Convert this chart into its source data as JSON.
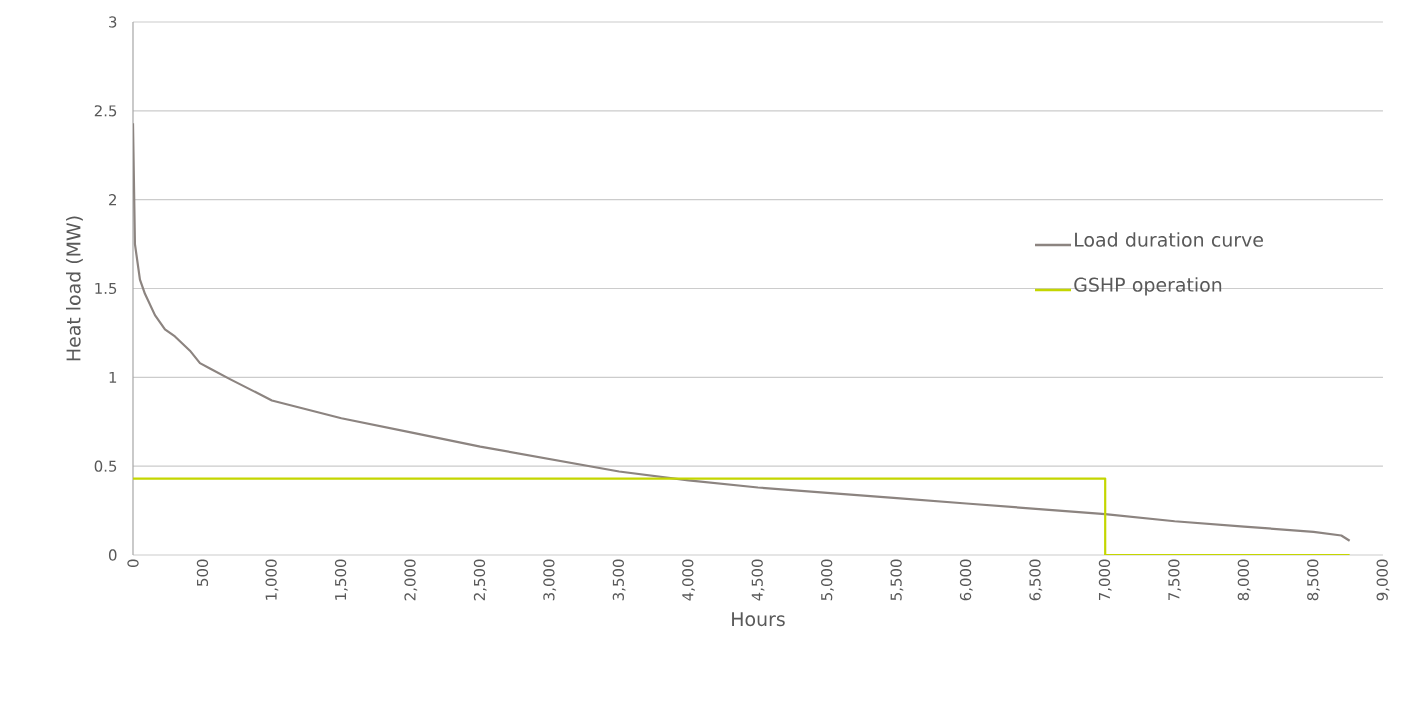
{
  "chart_data": {
    "type": "line",
    "xlabel": "Hours",
    "ylabel": "Heat load (MW)",
    "xlim": [
      0,
      9000
    ],
    "ylim": [
      0,
      3
    ],
    "xticks": [
      0,
      {
        "value": 500,
        "label": "500"
      },
      {
        "value": 1000,
        "label": "1,000"
      },
      {
        "value": 1500,
        "label": "1,500"
      },
      {
        "value": 2000,
        "label": "2,000"
      },
      {
        "value": 2500,
        "label": "2,500"
      },
      {
        "value": 3000,
        "label": "3,000"
      },
      {
        "value": 3500,
        "label": "3,500"
      },
      {
        "value": 4000,
        "label": "4,000"
      },
      {
        "value": 4500,
        "label": "4,500"
      },
      {
        "value": 5000,
        "label": "5,000"
      },
      {
        "value": 5500,
        "label": "5,500"
      },
      {
        "value": 6000,
        "label": "6,000"
      },
      {
        "value": 6500,
        "label": "6,500"
      },
      {
        "value": 7000,
        "label": "7,000"
      },
      {
        "value": 7500,
        "label": "7,500"
      },
      {
        "value": 8000,
        "label": "8,000"
      },
      {
        "value": 8500,
        "label": "8,500"
      },
      {
        "value": 9000,
        "label": "9,000"
      }
    ],
    "yticks": [
      0,
      0.5,
      1,
      1.5,
      2,
      2.5,
      3
    ],
    "grid": "y",
    "legend": "right",
    "marker": "none",
    "line_style": "solid",
    "series": [
      {
        "name": "Load duration curve",
        "color": "#8c8480",
        "x": [
          0,
          14,
          50,
          86,
          158,
          230,
          302,
          410,
          482,
          554,
          698,
          1000,
          1500,
          2000,
          2500,
          3000,
          3500,
          4000,
          4500,
          5000,
          5500,
          6000,
          6500,
          7000,
          7500,
          8000,
          8500,
          8700,
          8760
        ],
        "values": [
          2.43,
          1.75,
          1.55,
          1.47,
          1.35,
          1.27,
          1.23,
          1.15,
          1.08,
          1.05,
          0.99,
          0.87,
          0.77,
          0.69,
          0.61,
          0.54,
          0.47,
          0.42,
          0.38,
          0.35,
          0.32,
          0.29,
          0.26,
          0.23,
          0.19,
          0.16,
          0.13,
          0.11,
          0.08
        ]
      },
      {
        "name": "GSHP operation",
        "color": "#c4d600",
        "x": [
          0,
          7000,
          7000,
          8760
        ],
        "values": [
          0.43,
          0.43,
          0,
          0
        ]
      }
    ]
  }
}
